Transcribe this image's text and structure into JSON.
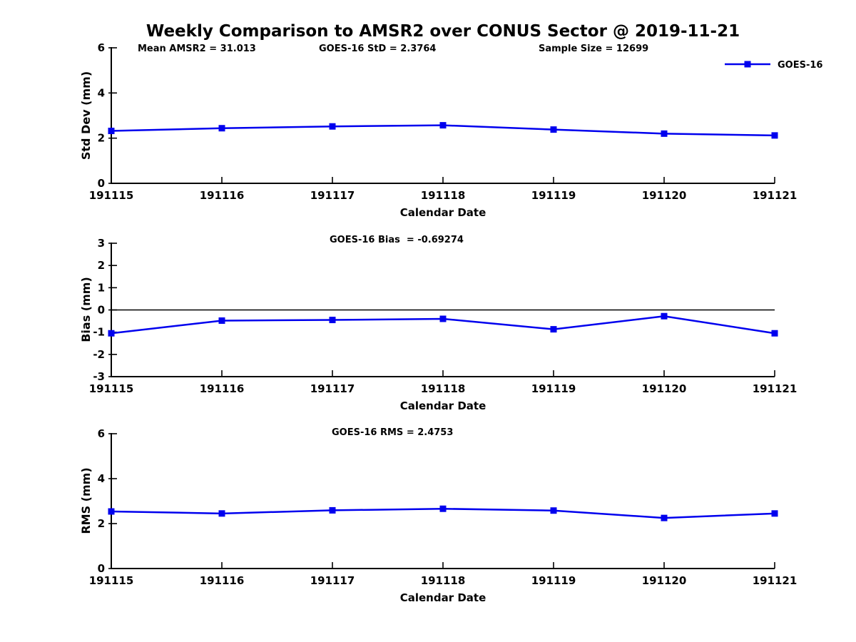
{
  "title": "Weekly Comparison to AMSR2 over CONUS Sector @ 2019-11-21",
  "legend": {
    "label": "GOES-16",
    "color": "#0000EE"
  },
  "annotations": {
    "mean_amsr2": "Mean AMSR2 = 31.013",
    "goes_std": "GOES-16 StD = 2.3764",
    "sample_size": "Sample Size = 12699"
  },
  "colors": {
    "line": "#0000EE",
    "axis": "#000000",
    "text": "#000000",
    "background": "#FFFFFF"
  },
  "chart_data": [
    {
      "type": "line",
      "title": "",
      "ylabel": "Std Dev (mm)",
      "xlabel": "Calendar Date",
      "categories": [
        "191115",
        "191116",
        "191117",
        "191118",
        "191119",
        "191120",
        "191121"
      ],
      "series": [
        {
          "name": "GOES-16",
          "values": [
            2.32,
            2.44,
            2.52,
            2.57,
            2.38,
            2.2,
            2.12
          ]
        }
      ],
      "ylim": [
        0,
        6
      ],
      "yticks": [
        0,
        2,
        4,
        6
      ],
      "zero_line": false,
      "grid": false,
      "marker": "square",
      "legend_position": "top-right",
      "annotation": ""
    },
    {
      "type": "line",
      "title": "",
      "ylabel": "Bias (mm)",
      "xlabel": "Calendar Date",
      "categories": [
        "191115",
        "191116",
        "191117",
        "191118",
        "191119",
        "191120",
        "191121"
      ],
      "series": [
        {
          "name": "GOES-16",
          "values": [
            -1.05,
            -0.48,
            -0.45,
            -0.4,
            -0.87,
            -0.28,
            -1.05
          ]
        }
      ],
      "ylim": [
        -3,
        3
      ],
      "yticks": [
        -3,
        -2,
        -1,
        0,
        1,
        2,
        3
      ],
      "zero_line": true,
      "grid": false,
      "marker": "square",
      "legend_position": "none",
      "annotation": "GOES-16 Bias  = -0.69274"
    },
    {
      "type": "line",
      "title": "",
      "ylabel": "RMS (mm)",
      "xlabel": "Calendar Date",
      "categories": [
        "191115",
        "191116",
        "191117",
        "191118",
        "191119",
        "191120",
        "191121"
      ],
      "series": [
        {
          "name": "GOES-16",
          "values": [
            2.54,
            2.45,
            2.59,
            2.66,
            2.58,
            2.25,
            2.45
          ]
        }
      ],
      "ylim": [
        0,
        6
      ],
      "yticks": [
        0,
        2,
        4,
        6
      ],
      "zero_line": false,
      "grid": false,
      "marker": "square",
      "legend_position": "none",
      "annotation": "GOES-16 RMS = 2.4753"
    }
  ]
}
